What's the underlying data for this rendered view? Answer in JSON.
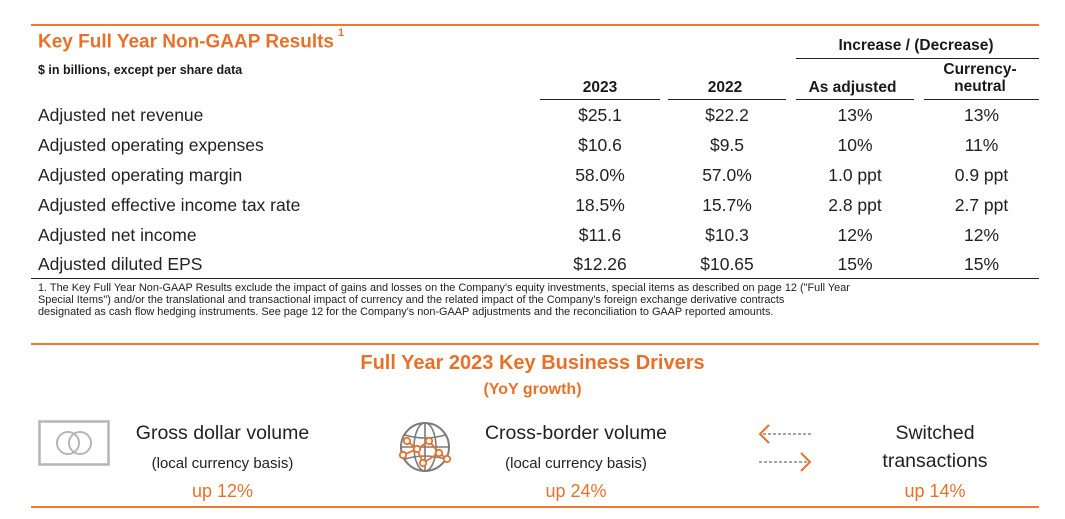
{
  "header": {
    "title": "Key Full Year Non-GAAP Results",
    "footnote_marker": "1",
    "subtitle": "$ in billions, except per share data",
    "group_header": "Increase / (Decrease)",
    "columns": [
      "2023",
      "2022",
      "As adjusted",
      "Currency-neutral"
    ],
    "currency_neutral_line1": "Currency-",
    "currency_neutral_line2": "neutral"
  },
  "table": {
    "rows": [
      {
        "label": "Adjusted net revenue",
        "v2023": "$25.1",
        "v2022": "$22.2",
        "as_adjusted": "13%",
        "currency_neutral": "13%"
      },
      {
        "label": "Adjusted operating expenses",
        "v2023": "$10.6",
        "v2022": "$9.5",
        "as_adjusted": "10%",
        "currency_neutral": "11%"
      },
      {
        "label": "Adjusted operating margin",
        "v2023": "58.0%",
        "v2022": "57.0%",
        "as_adjusted": "1.0 ppt",
        "currency_neutral": "0.9 ppt"
      },
      {
        "label": "Adjusted effective income tax rate",
        "v2023": "18.5%",
        "v2022": "15.7%",
        "as_adjusted": "2.8 ppt",
        "currency_neutral": "2.7 ppt"
      },
      {
        "label": "Adjusted net income",
        "v2023": "$11.6",
        "v2022": "$10.3",
        "as_adjusted": "12%",
        "currency_neutral": "12%"
      },
      {
        "label": "Adjusted diluted EPS",
        "v2023": "$12.26",
        "v2022": "$10.65",
        "as_adjusted": "15%",
        "currency_neutral": "15%"
      }
    ]
  },
  "footnote": {
    "line1": "1. The Key Full Year Non-GAAP Results exclude the impact of gains and losses on the Company's equity investments, special items as described on page 12 (\"Full Year",
    "line2": "Special Items\") and/or the translational and transactional impact of currency and the related impact of the Company's foreign exchange derivative contracts",
    "line3": "designated as cash flow hedging instruments. See page 12 for the Company's non-GAAP adjustments and the reconciliation to GAAP reported amounts."
  },
  "drivers": {
    "title": "Full Year 2023 Key Business Drivers",
    "subtitle": "(YoY growth)",
    "accent_color": "#e8712a",
    "items": [
      {
        "icon": "card-icon",
        "label": "Gross dollar volume",
        "sub": "(local currency basis)",
        "value": "up 12%"
      },
      {
        "icon": "globe-network-icon",
        "label": "Cross-border volume",
        "sub": "(local currency basis)",
        "value": "up 24%"
      },
      {
        "icon": "switch-arrows-icon",
        "label": "Switched",
        "label2": "transactions",
        "value": "up 14%"
      }
    ]
  }
}
